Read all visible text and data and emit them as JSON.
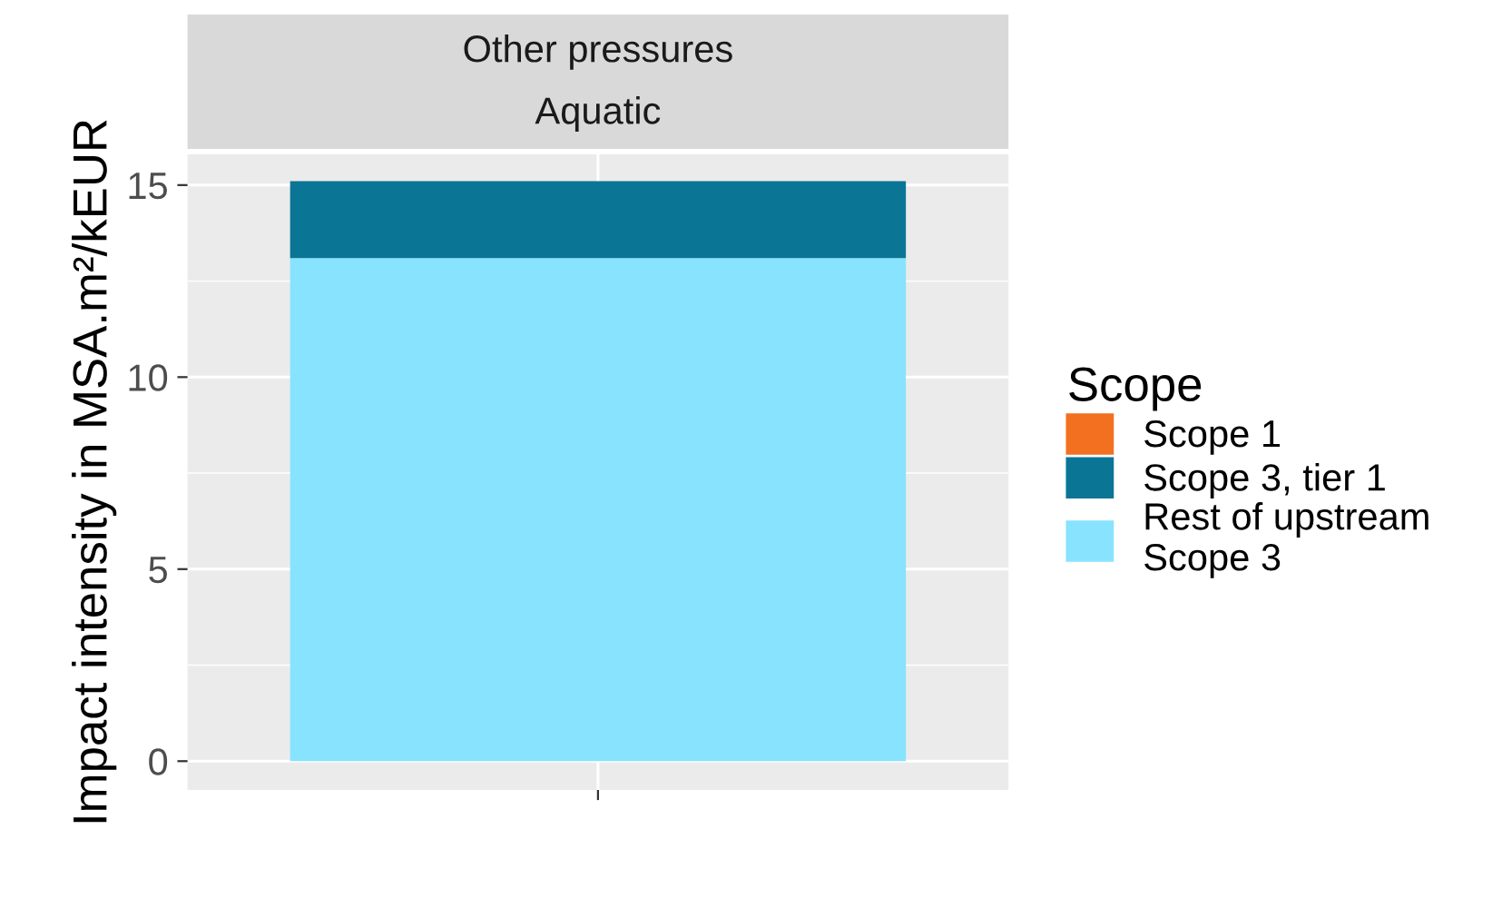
{
  "chart_data": {
    "type": "bar",
    "title": "Other pressures",
    "subtitle": "Aquatic",
    "ylabel": "Impact intensity in MSA.m²/kEUR",
    "categories": [
      null
    ],
    "stacked": true,
    "series": [
      {
        "name": "Rest of upstream\nScope 3",
        "color": "#88e3fe",
        "values": [
          13.1
        ]
      },
      {
        "name": "Scope 3, tier 1",
        "color": "#0b7596",
        "values": [
          2
        ]
      },
      {
        "name": "Scope 1",
        "color": "#f37021",
        "values": [
          0
        ]
      }
    ],
    "ylim": [
      -0.75,
      15.8
    ],
    "yticks": [
      0,
      5,
      10,
      15
    ],
    "grid": true,
    "legend": "right",
    "legend_title": "Scope"
  }
}
